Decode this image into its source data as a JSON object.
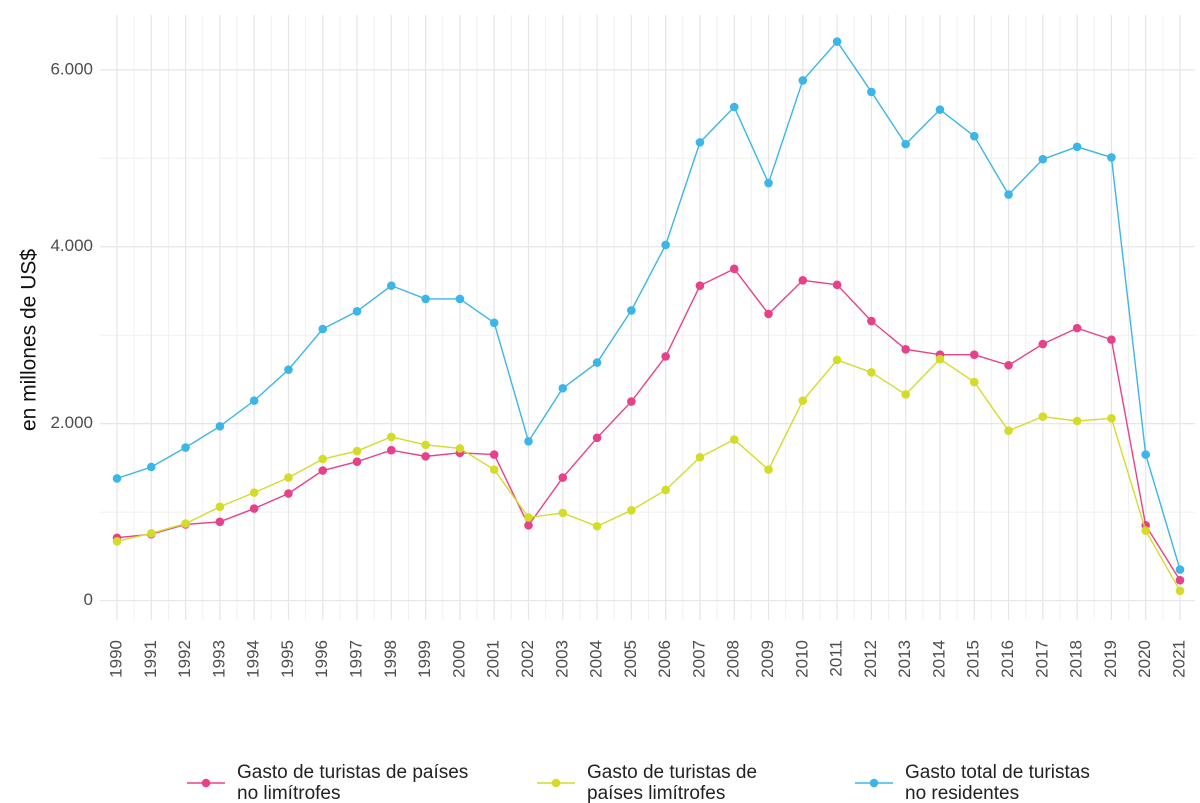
{
  "chart_data": {
    "type": "line",
    "y_label": "en millones de US$",
    "categories": [
      "1990",
      "1991",
      "1992",
      "1993",
      "1994",
      "1995",
      "1996",
      "1997",
      "1998",
      "1999",
      "2000",
      "2001",
      "2002",
      "2003",
      "2004",
      "2005",
      "2006",
      "2007",
      "2008",
      "2009",
      "2010",
      "2011",
      "2012",
      "2013",
      "2014",
      "2015",
      "2016",
      "2017",
      "2018",
      "2019",
      "2020",
      "2021"
    ],
    "series": [
      {
        "name": "Gasto de turistas de países no limítrofes",
        "color": "#e7418a",
        "values": [
          710,
          750,
          860,
          890,
          1040,
          1210,
          1470,
          1570,
          1700,
          1630,
          1670,
          1650,
          850,
          1390,
          1840,
          2250,
          2760,
          3560,
          3750,
          3240,
          3620,
          3570,
          3160,
          2840,
          2780,
          2780,
          2660,
          2900,
          3080,
          2950,
          850,
          230
        ]
      },
      {
        "name": "Gasto de turistas de países limítrofes",
        "color": "#d4dc2a",
        "values": [
          670,
          760,
          870,
          1060,
          1220,
          1390,
          1600,
          1690,
          1850,
          1760,
          1720,
          1480,
          940,
          990,
          840,
          1020,
          1250,
          1620,
          1820,
          1480,
          2260,
          2720,
          2580,
          2330,
          2730,
          2470,
          1920,
          2080,
          2030,
          2060,
          790,
          110
        ]
      },
      {
        "name": "Gasto total de turistas no residentes",
        "color": "#3bb6e6",
        "values": [
          1380,
          1510,
          1730,
          1970,
          2260,
          2610,
          3070,
          3270,
          3560,
          3410,
          3410,
          3140,
          1800,
          2400,
          2690,
          3280,
          4020,
          5180,
          5580,
          4720,
          5880,
          6320,
          5750,
          5160,
          5550,
          5250,
          4590,
          4990,
          5130,
          5010,
          1650,
          350
        ]
      }
    ],
    "ylim": [
      -220,
      6620
    ],
    "yticks": [
      0,
      {
        "value": 2000,
        "label": "2.000"
      },
      {
        "value": 4000,
        "label": "4.000"
      },
      {
        "value": 6000,
        "label": "6.000"
      }
    ],
    "grid": true,
    "legend": "bottom"
  }
}
